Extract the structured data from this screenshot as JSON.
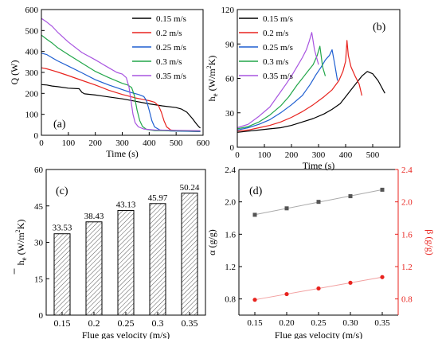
{
  "chart_data": [
    {
      "panel": "(a)",
      "type": "line",
      "xlabel": "Time (s)",
      "ylabel": "Q (W)",
      "xlim": [
        0,
        600
      ],
      "ylim": [
        0,
        600
      ],
      "xticks": [
        0,
        100,
        200,
        300,
        400,
        500,
        600
      ],
      "yticks": [
        0,
        100,
        200,
        300,
        400,
        500,
        600
      ],
      "legend_position": "top-right",
      "series": [
        {
          "name": "0.15 m/s",
          "color": "#000000",
          "points": [
            [
              0,
              242
            ],
            [
              20,
              240
            ],
            [
              40,
              235
            ],
            [
              60,
              232
            ],
            [
              100,
              225
            ],
            [
              140,
              222
            ],
            [
              150,
              205
            ],
            [
              160,
              198
            ],
            [
              200,
              192
            ],
            [
              250,
              183
            ],
            [
              300,
              174
            ],
            [
              350,
              162
            ],
            [
              400,
              150
            ],
            [
              450,
              140
            ],
            [
              500,
              132
            ],
            [
              520,
              125
            ],
            [
              540,
              110
            ],
            [
              560,
              80
            ],
            [
              575,
              55
            ],
            [
              585,
              40
            ],
            [
              590,
              35
            ]
          ]
        },
        {
          "name": "0.2 m/s",
          "color": "#e8231e",
          "points": [
            [
              0,
              322
            ],
            [
              20,
              317
            ],
            [
              40,
              310
            ],
            [
              60,
              302
            ],
            [
              100,
              285
            ],
            [
              150,
              262
            ],
            [
              200,
              240
            ],
            [
              250,
              215
            ],
            [
              300,
              195
            ],
            [
              350,
              178
            ],
            [
              380,
              170
            ],
            [
              400,
              165
            ],
            [
              420,
              158
            ],
            [
              435,
              140
            ],
            [
              445,
              110
            ],
            [
              455,
              70
            ],
            [
              465,
              40
            ],
            [
              480,
              25
            ],
            [
              520,
              20
            ],
            [
              580,
              18
            ],
            [
              590,
              18
            ]
          ]
        },
        {
          "name": "0.25 m/s",
          "color": "#1f5fd1",
          "points": [
            [
              0,
              392
            ],
            [
              20,
              385
            ],
            [
              40,
              370
            ],
            [
              60,
              355
            ],
            [
              100,
              330
            ],
            [
              150,
              298
            ],
            [
              200,
              265
            ],
            [
              250,
              240
            ],
            [
              300,
              218
            ],
            [
              330,
              205
            ],
            [
              360,
              195
            ],
            [
              380,
              185
            ],
            [
              390,
              165
            ],
            [
              400,
              120
            ],
            [
              410,
              70
            ],
            [
              420,
              40
            ],
            [
              440,
              25
            ],
            [
              480,
              20
            ],
            [
              590,
              18
            ]
          ]
        },
        {
          "name": "0.3 m/s",
          "color": "#22a64a",
          "points": [
            [
              0,
              478
            ],
            [
              20,
              458
            ],
            [
              40,
              440
            ],
            [
              60,
              418
            ],
            [
              100,
              385
            ],
            [
              150,
              345
            ],
            [
              200,
              305
            ],
            [
              250,
              275
            ],
            [
              300,
              248
            ],
            [
              320,
              240
            ],
            [
              335,
              228
            ],
            [
              345,
              190
            ],
            [
              355,
              120
            ],
            [
              365,
              70
            ],
            [
              375,
              42
            ],
            [
              390,
              28
            ],
            [
              420,
              22
            ],
            [
              590,
              20
            ]
          ]
        },
        {
          "name": "0.35 m/s",
          "color": "#a855e0",
          "points": [
            [
              0,
              558
            ],
            [
              20,
              540
            ],
            [
              40,
              520
            ],
            [
              60,
              492
            ],
            [
              100,
              445
            ],
            [
              150,
              395
            ],
            [
              200,
              360
            ],
            [
              250,
              322
            ],
            [
              280,
              300
            ],
            [
              300,
              292
            ],
            [
              315,
              275
            ],
            [
              325,
              230
            ],
            [
              333,
              160
            ],
            [
              340,
              100
            ],
            [
              348,
              60
            ],
            [
              360,
              40
            ],
            [
              380,
              30
            ],
            [
              420,
              25
            ],
            [
              590,
              22
            ]
          ]
        }
      ]
    },
    {
      "panel": "(b)",
      "type": "line",
      "xlabel": "Time (s)",
      "ylabel": "he (W/m2K)",
      "xlim": [
        0,
        600
      ],
      "ylim": [
        0,
        120
      ],
      "xticks": [
        0,
        100,
        200,
        300,
        400,
        500
      ],
      "yticks": [
        0,
        30,
        60,
        90,
        120
      ],
      "legend_position": "top-left",
      "series": [
        {
          "name": "0.15 m/s",
          "color": "#000000",
          "points": [
            [
              0,
              13
            ],
            [
              40,
              14
            ],
            [
              80,
              15
            ],
            [
              120,
              16
            ],
            [
              160,
              17
            ],
            [
              200,
              19
            ],
            [
              240,
              22
            ],
            [
              280,
              25
            ],
            [
              320,
              29
            ],
            [
              350,
              33
            ],
            [
              380,
              38
            ],
            [
              400,
              44
            ],
            [
              420,
              50
            ],
            [
              440,
              56
            ],
            [
              460,
              62
            ],
            [
              480,
              66
            ],
            [
              500,
              64
            ],
            [
              520,
              58
            ],
            [
              545,
              47
            ]
          ]
        },
        {
          "name": "0.2 m/s",
          "color": "#e8231e",
          "points": [
            [
              0,
              14
            ],
            [
              40,
              15
            ],
            [
              80,
              17
            ],
            [
              120,
              19
            ],
            [
              160,
              22
            ],
            [
              200,
              26
            ],
            [
              240,
              31
            ],
            [
              280,
              37
            ],
            [
              320,
              44
            ],
            [
              350,
              50
            ],
            [
              375,
              58
            ],
            [
              390,
              66
            ],
            [
              400,
              75
            ],
            [
              405,
              93
            ],
            [
              410,
              80
            ],
            [
              420,
              70
            ],
            [
              435,
              62
            ],
            [
              450,
              55
            ],
            [
              460,
              45
            ]
          ]
        },
        {
          "name": "0.25 m/s",
          "color": "#1f5fd1",
          "points": [
            [
              0,
              15
            ],
            [
              40,
              17
            ],
            [
              80,
              20
            ],
            [
              120,
              24
            ],
            [
              160,
              30
            ],
            [
              200,
              37
            ],
            [
              240,
              45
            ],
            [
              270,
              55
            ],
            [
              290,
              63
            ],
            [
              310,
              70
            ],
            [
              325,
              76
            ],
            [
              340,
              80
            ],
            [
              350,
              85
            ],
            [
              360,
              72
            ],
            [
              370,
              58
            ]
          ]
        },
        {
          "name": "0.3 m/s",
          "color": "#22a64a",
          "points": [
            [
              0,
              16
            ],
            [
              40,
              18
            ],
            [
              80,
              22
            ],
            [
              120,
              28
            ],
            [
              160,
              36
            ],
            [
              190,
              44
            ],
            [
              220,
              54
            ],
            [
              240,
              60
            ],
            [
              260,
              66
            ],
            [
              280,
              72
            ],
            [
              295,
              80
            ],
            [
              305,
              88
            ],
            [
              315,
              70
            ],
            [
              325,
              62
            ]
          ]
        },
        {
          "name": "0.35 m/s",
          "color": "#a855e0",
          "points": [
            [
              0,
              17
            ],
            [
              40,
              20
            ],
            [
              80,
              27
            ],
            [
              120,
              35
            ],
            [
              150,
              45
            ],
            [
              180,
              55
            ],
            [
              200,
              62
            ],
            [
              220,
              70
            ],
            [
              240,
              78
            ],
            [
              255,
              85
            ],
            [
              265,
              92
            ],
            [
              275,
              100
            ],
            [
              285,
              85
            ],
            [
              300,
              72
            ]
          ]
        }
      ]
    },
    {
      "panel": "(c)",
      "type": "bar",
      "xlabel": "Flue gas velocity (m/s)",
      "ylabel": "he (W/m2K)",
      "categories": [
        "0.15",
        "0.2",
        "0.25",
        "0.3",
        "0.35"
      ],
      "values": [
        33.53,
        38.43,
        43.13,
        45.97,
        50.24
      ],
      "value_labels": [
        "33.53",
        "38.43",
        "43.13",
        "45.97",
        "50.24"
      ],
      "ylim": [
        0,
        60
      ],
      "yticks": [
        0,
        15,
        30,
        45,
        60
      ]
    },
    {
      "panel": "(d)",
      "type": "scatter",
      "xlabel": "Flue gas velocity (m/s)",
      "xlim": [
        0.125,
        0.375
      ],
      "xticks": [
        0.15,
        0.2,
        0.25,
        0.3,
        0.35
      ],
      "ylabel": "α (g/g)",
      "ylabel_right": "β (g/g)",
      "ylim": [
        0.6,
        2.4
      ],
      "ylim_right": [
        0.6,
        2.4
      ],
      "yticks": [
        0.8,
        1.2,
        1.6,
        2.0,
        2.4
      ],
      "series": [
        {
          "name": "α",
          "axis": "left",
          "color": "#555555",
          "x": [
            0.15,
            0.2,
            0.25,
            0.3,
            0.35
          ],
          "y": [
            1.84,
            1.92,
            2.0,
            2.07,
            2.15
          ]
        },
        {
          "name": "β",
          "axis": "right",
          "color": "#e8231e",
          "x": [
            0.15,
            0.2,
            0.25,
            0.3,
            0.35
          ],
          "y": [
            0.79,
            0.86,
            0.93,
            1.0,
            1.07
          ]
        }
      ]
    }
  ]
}
